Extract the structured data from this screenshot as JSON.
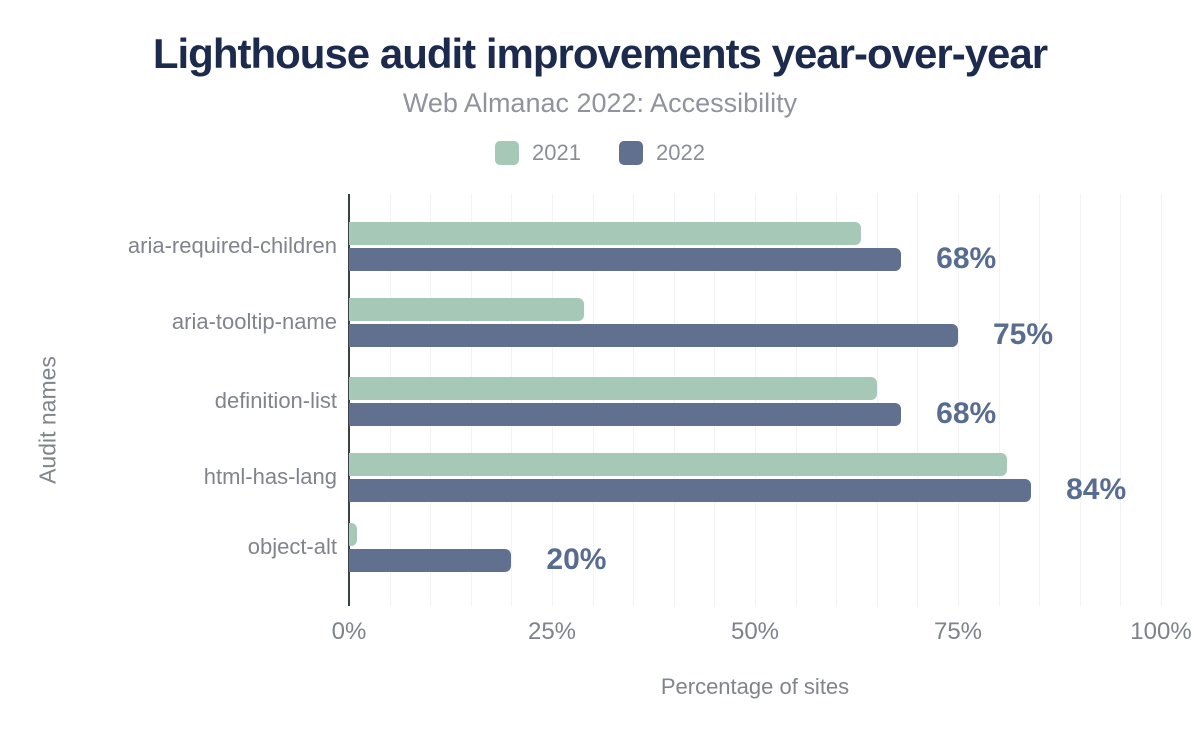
{
  "title": "Lighthouse audit improvements year-over-year",
  "subtitle": "Web Almanac 2022: Accessibility",
  "colors": {
    "series_2021": "#a6c8b7",
    "series_2022": "#61708f",
    "title_text": "#1c2b4d",
    "subtitle_text": "#90939c",
    "value_label_text": "#586c90",
    "axis_text": "#81848c",
    "axis_line": "#3b3f48",
    "gridline": "#f3f3f6"
  },
  "chart_data": {
    "type": "bar",
    "orientation": "horizontal",
    "title": "Lighthouse audit improvements year-over-year",
    "subtitle": "Web Almanac 2022: Accessibility",
    "categories": [
      "aria-required-children",
      "aria-tooltip-name",
      "definition-list",
      "html-has-lang",
      "object-alt"
    ],
    "series": [
      {
        "name": "2021",
        "color": "#a6c8b7",
        "values": [
          63,
          29,
          65,
          81,
          1
        ]
      },
      {
        "name": "2022",
        "color": "#61708f",
        "values": [
          68,
          75,
          68,
          84,
          20
        ]
      }
    ],
    "value_labels": {
      "series": "2022",
      "labels": [
        "68%",
        "75%",
        "68%",
        "84%",
        "20%"
      ]
    },
    "xlabel": "Percentage of sites",
    "ylabel": "Audit names",
    "xlim": [
      0,
      100
    ],
    "xticks": [
      {
        "value": 0,
        "label": "0%"
      },
      {
        "value": 25,
        "label": "25%"
      },
      {
        "value": 50,
        "label": "50%"
      },
      {
        "value": 75,
        "label": "75%"
      },
      {
        "value": 100,
        "label": "100%"
      }
    ],
    "grid": {
      "vertical_minor_step_pct": 5
    },
    "legend_position": "top"
  }
}
